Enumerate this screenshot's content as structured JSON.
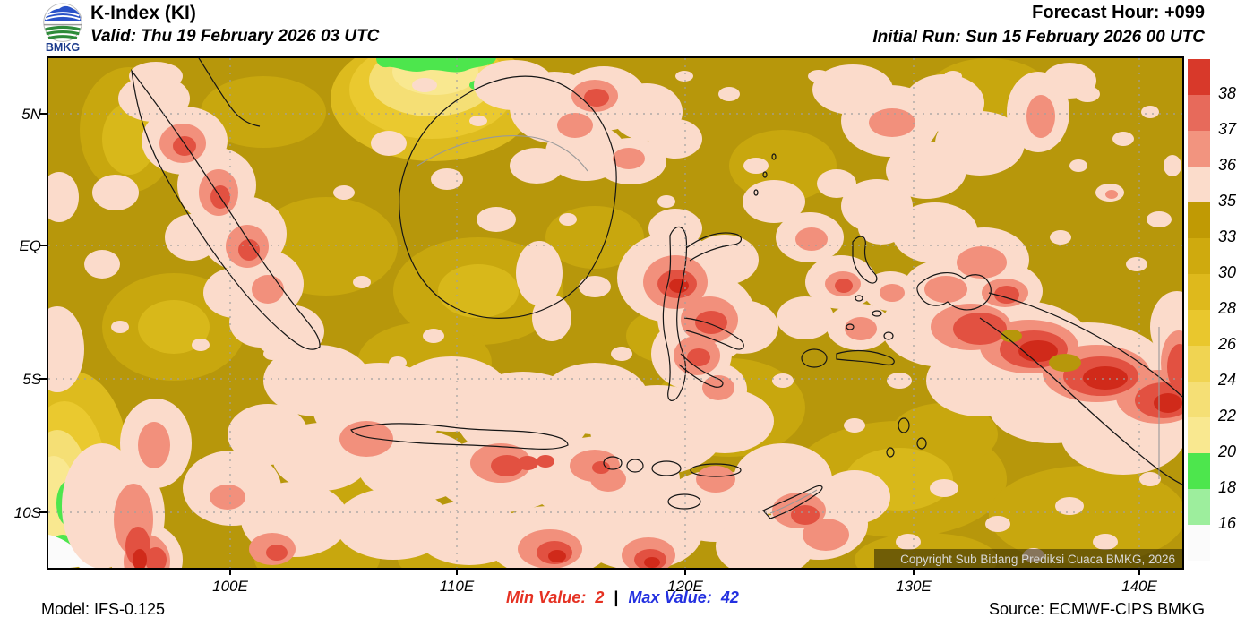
{
  "header": {
    "logo_text": "BMKG",
    "title": "K-Index (KI)",
    "valid": "Valid: Thu 19 February 2026 03 UTC",
    "forecast_hour": "Forecast Hour: +099",
    "initial_run": "Initial Run: Sun 15 February 2026 00 UTC"
  },
  "map": {
    "lat_labels": [
      "5N",
      "EQ",
      "5S",
      "10S"
    ],
    "lon_labels": [
      "100E",
      "110E",
      "120E",
      "130E",
      "140E"
    ],
    "copyright": "Copyright Sub Bidang Prediksi Cuaca BMKG, 2026"
  },
  "legend": {
    "tick_labels": [
      "38",
      "37",
      "36",
      "35",
      "33",
      "30",
      "28",
      "26",
      "24",
      "22",
      "20",
      "18",
      "16"
    ],
    "colors": [
      "#d8392a",
      "#e76a5b",
      "#f2947f",
      "#fbdccb",
      "#c09a04",
      "#cfaa0e",
      "#deb91c",
      "#e9c72d",
      "#f0d452",
      "#f5df75",
      "#f9e890",
      "#4de64d",
      "#9dee9d",
      "#fbfbfb"
    ]
  },
  "footer": {
    "model": "Model: IFS-0.125",
    "min_label": "Min Value:",
    "min_value": "2",
    "separator": "|",
    "max_label": "Max Value:",
    "max_value": "42",
    "min_color": "#e53122",
    "max_color": "#2330e0",
    "source": "Source: ECMWF-CIPS BMKG"
  },
  "chart_data": {
    "type": "heatmap",
    "title": "K-Index (KI)",
    "legend_boundaries": [
      16,
      18,
      20,
      22,
      24,
      26,
      28,
      30,
      33,
      35,
      36,
      37,
      38
    ],
    "min_value": 2,
    "max_value": 42,
    "x_ticks": [
      "100E",
      "110E",
      "120E",
      "130E",
      "140E"
    ],
    "y_ticks": [
      "5N",
      "EQ",
      "5S",
      "10S"
    ],
    "legend_position": "right"
  }
}
